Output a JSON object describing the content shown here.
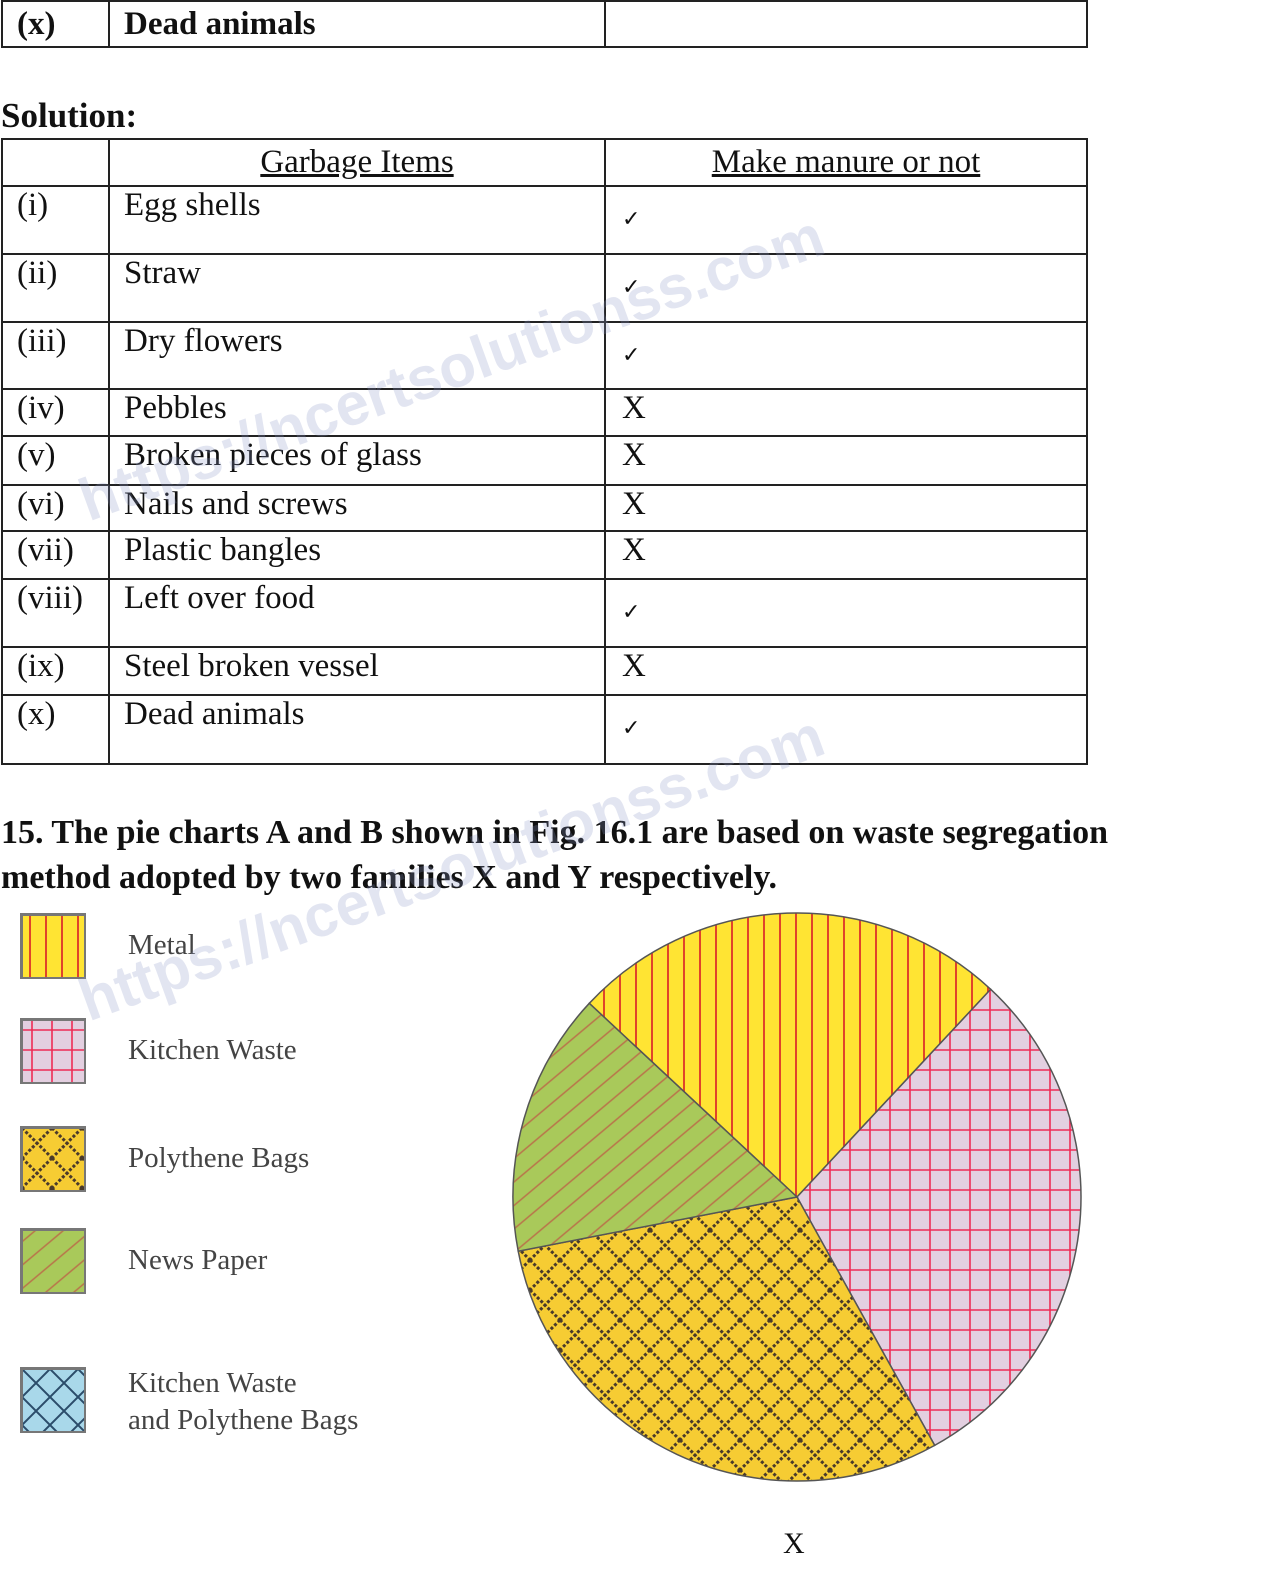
{
  "top_table": {
    "num": "(x)",
    "item": "Dead animals",
    "value": ""
  },
  "solution_title": "Solution:",
  "solution_table": {
    "headers": [
      "",
      "Garbage Items",
      "Make manure or not"
    ],
    "rows": [
      {
        "num": "(i)",
        "item": "Egg shells",
        "mark": "check"
      },
      {
        "num": "(ii)",
        "item": "Straw",
        "mark": "check"
      },
      {
        "num": "(iii)",
        "item": "Dry flowers",
        "mark": "check"
      },
      {
        "num": "(iv)",
        "item": "Pebbles",
        "mark": "X"
      },
      {
        "num": "(v)",
        "item": "Broken pieces of glass",
        "mark": "X"
      },
      {
        "num": "(vi)",
        "item": "Nails and screws",
        "mark": "X"
      },
      {
        "num": "(vii)",
        "item": "Plastic bangles",
        "mark": "X"
      },
      {
        "num": "(viii)",
        "item": "Left over food",
        "mark": "check"
      },
      {
        "num": "(ix)",
        "item": "Steel broken vessel",
        "mark": "X"
      },
      {
        "num": "(x)",
        "item": "Dead animals",
        "mark": "check"
      }
    ],
    "check_symbol": "✓",
    "x_symbol": "X"
  },
  "question": {
    "line1": "15. The pie charts A and B shown in Fig. 16.1 are based on waste segregation",
    "line2": "method adopted by two families X and Y respectively."
  },
  "legend": [
    {
      "label": "Metal",
      "pattern": "vertical-stripes",
      "color": "#ffe433"
    },
    {
      "label": "Kitchen Waste",
      "pattern": "grid",
      "color": "#e6c9dc"
    },
    {
      "label": "Polythene Bags",
      "pattern": "dotted-diagonal-cross",
      "color": "#f6cc33"
    },
    {
      "label": "News Paper",
      "pattern": "diagonal-stripes",
      "color": "#a9c95a"
    },
    {
      "label": "Kitchen Waste and Polythene Bags",
      "label_line1": "Kitchen Waste",
      "label_line2": "and Polythene Bags",
      "pattern": "diagonal-cross",
      "color": "#a9d8ea"
    }
  ],
  "chart_data": {
    "type": "pie",
    "title": "X",
    "categories": [
      "Metal",
      "Kitchen Waste",
      "Polythene Bags",
      "News Paper"
    ],
    "values": [
      25,
      30,
      30,
      15
    ],
    "colors": [
      "#ffe433",
      "#e6c9dc",
      "#f6cc33",
      "#a9c95a"
    ],
    "start_angle_deg_clockwise_from_top": -47,
    "legend_placement": "left"
  },
  "watermark": "https://ncertsolutionss.com"
}
